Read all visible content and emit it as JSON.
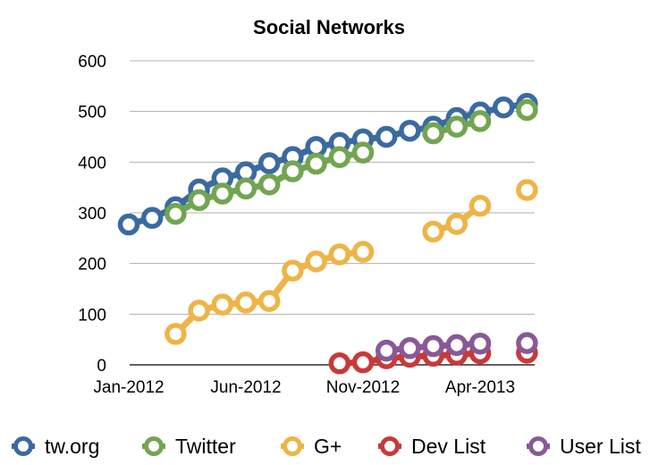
{
  "chart_data": {
    "type": "line",
    "title": "Social Networks",
    "xlabel": "",
    "ylabel": "",
    "ylim": [
      0,
      600
    ],
    "yticks": [
      "0",
      "100",
      "200",
      "300",
      "400",
      "500",
      "600"
    ],
    "xticks": [
      "Jan-2012",
      "Jun-2012",
      "Nov-2012",
      "Apr-2013"
    ],
    "x_range": [
      "2012-01",
      "2013-06"
    ],
    "grid": "horizontal",
    "legend_position": "bottom",
    "marker": "hollow-circle",
    "series": [
      {
        "name": "tw.org",
        "color": "#3a6aa0",
        "points": [
          [
            "2012-01",
            277
          ],
          [
            "2012-02",
            290
          ],
          [
            "2012-03",
            311
          ],
          [
            "2012-04",
            346
          ],
          [
            "2012-05",
            368
          ],
          [
            "2012-06",
            380
          ],
          [
            "2012-07",
            398
          ],
          [
            "2012-08",
            410
          ],
          [
            "2012-09",
            430
          ],
          [
            "2012-10",
            438
          ],
          [
            "2012-11",
            445
          ],
          [
            "2012-12",
            450
          ],
          [
            "2013-01",
            462
          ],
          [
            "2013-02",
            470
          ],
          [
            "2013-03",
            487
          ],
          [
            "2013-04",
            498
          ],
          [
            "2013-05",
            508
          ],
          [
            "2013-06",
            515
          ]
        ]
      },
      {
        "name": "Twitter",
        "color": "#72a552",
        "points": [
          [
            "2012-03",
            298
          ],
          [
            "2012-04",
            325
          ],
          [
            "2012-05",
            338
          ],
          [
            "2012-06",
            348
          ],
          [
            "2012-07",
            356
          ],
          [
            "2012-08",
            382
          ],
          [
            "2012-09",
            397
          ],
          [
            "2012-10",
            410
          ],
          [
            "2012-11",
            419
          ],
          [
            "2013-02",
            457
          ],
          [
            "2013-03",
            470
          ],
          [
            "2013-04",
            481
          ],
          [
            "2013-06",
            503
          ]
        ]
      },
      {
        "name": "G+",
        "color": "#eeb447",
        "points": [
          [
            "2012-03",
            61
          ],
          [
            "2012-04",
            107
          ],
          [
            "2012-05",
            119
          ],
          [
            "2012-06",
            123
          ],
          [
            "2012-07",
            126
          ],
          [
            "2012-08",
            186
          ],
          [
            "2012-09",
            204
          ],
          [
            "2012-10",
            218
          ],
          [
            "2012-11",
            223
          ],
          [
            "2013-02",
            263
          ],
          [
            "2013-03",
            278
          ],
          [
            "2013-04",
            314
          ],
          [
            "2013-06",
            345
          ]
        ]
      },
      {
        "name": "Dev List",
        "color": "#c73a3a",
        "points": [
          [
            "2012-10",
            3
          ],
          [
            "2012-11",
            5
          ],
          [
            "2012-12",
            13
          ],
          [
            "2013-01",
            16
          ],
          [
            "2013-02",
            18
          ],
          [
            "2013-03",
            20
          ],
          [
            "2013-04",
            23
          ],
          [
            "2013-06",
            24
          ]
        ]
      },
      {
        "name": "User List",
        "color": "#8a5898",
        "points": [
          [
            "2012-12",
            28
          ],
          [
            "2013-01",
            33
          ],
          [
            "2013-02",
            37
          ],
          [
            "2013-03",
            39
          ],
          [
            "2013-04",
            42
          ],
          [
            "2013-06",
            43
          ]
        ]
      }
    ]
  }
}
